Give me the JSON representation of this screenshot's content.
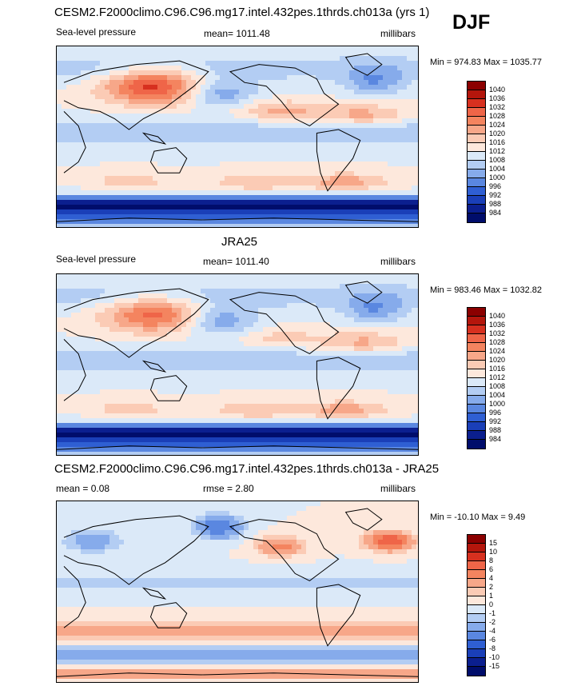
{
  "season": "DJF",
  "chart_data": [
    {
      "type": "heatmap",
      "title": "CESM2.F2000climo.C96.C96.mg17.intel.432pes.1thrds.ch013a (yrs 1)",
      "left_label": "Sea-level pressure",
      "center_label": "mean= 1011.48",
      "units": "millibars",
      "min_max": "Min = 974.83 Max = 1035.77",
      "min": 974.83,
      "max": 1035.77,
      "levels": [
        "1040",
        "1036",
        "1032",
        "1028",
        "1024",
        "1020",
        "1016",
        "1012",
        "1008",
        "1004",
        "1000",
        "996",
        "992",
        "988",
        "984"
      ],
      "colors": [
        "#8b0000",
        "#b4160c",
        "#d7301f",
        "#ef6548",
        "#f4845f",
        "#f7a789",
        "#fbcbb5",
        "#fde8dc",
        "#dbe9f8",
        "#b3cdf3",
        "#86abeb",
        "#5a87e0",
        "#2f5fd3",
        "#1a3fb8",
        "#0b1f8f",
        "#000d6b"
      ]
    },
    {
      "type": "heatmap",
      "title": "JRA25",
      "left_label": "Sea-level pressure",
      "center_label": "mean= 1011.40",
      "units": "millibars",
      "min_max": "Min = 983.46 Max = 1032.82",
      "min": 983.46,
      "max": 1032.82,
      "levels": [
        "1040",
        "1036",
        "1032",
        "1028",
        "1024",
        "1020",
        "1016",
        "1012",
        "1008",
        "1004",
        "1000",
        "996",
        "992",
        "988",
        "984"
      ],
      "colors": [
        "#8b0000",
        "#b4160c",
        "#d7301f",
        "#ef6548",
        "#f4845f",
        "#f7a789",
        "#fbcbb5",
        "#fde8dc",
        "#dbe9f8",
        "#b3cdf3",
        "#86abeb",
        "#5a87e0",
        "#2f5fd3",
        "#1a3fb8",
        "#0b1f8f",
        "#000d6b"
      ]
    },
    {
      "type": "heatmap",
      "title": "CESM2.F2000climo.C96.C96.mg17.intel.432pes.1thrds.ch013a - JRA25",
      "left_label": "mean =   0.08",
      "center_label": "rmse =   2.80",
      "units": "millibars",
      "min_max": "Min = -10.10 Max =   9.49",
      "min": -10.1,
      "max": 9.49,
      "levels": [
        "15",
        "10",
        "8",
        "6",
        "4",
        "2",
        "1",
        "0",
        "-1",
        "-2",
        "-4",
        "-6",
        "-8",
        "-10",
        "-15"
      ],
      "colors": [
        "#8b0000",
        "#b4160c",
        "#d7301f",
        "#ef6548",
        "#f4845f",
        "#f7a789",
        "#fbcbb5",
        "#fde8dc",
        "#dbe9f8",
        "#b3cdf3",
        "#86abeb",
        "#5a87e0",
        "#2f5fd3",
        "#1a3fb8",
        "#0b1f8f",
        "#000d6b"
      ]
    }
  ]
}
